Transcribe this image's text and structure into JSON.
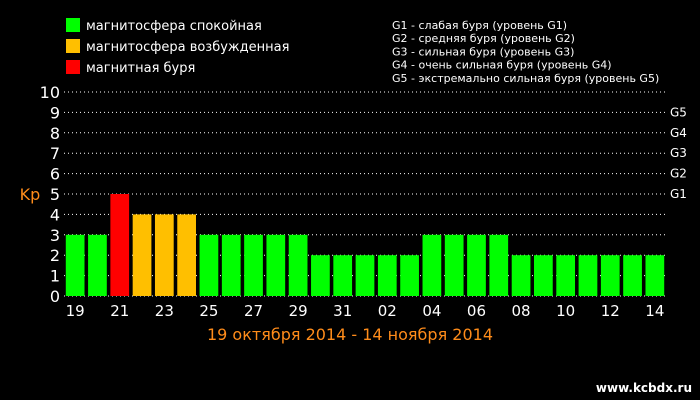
{
  "chart_data": {
    "type": "bar",
    "ylabel": "Kp",
    "ylim": [
      0,
      10
    ],
    "yticks": [
      "0",
      "1",
      "2",
      "3",
      "4",
      "5",
      "6",
      "7",
      "8",
      "9",
      "10"
    ],
    "grid": "horizontal-dotted",
    "x_range_label": "19 октября 2014 - 14 ноября 2014",
    "categories": [
      "19",
      "20",
      "21",
      "22",
      "23",
      "24",
      "25",
      "26",
      "27",
      "28",
      "29",
      "30",
      "31",
      "01",
      "02",
      "03",
      "04",
      "05",
      "06",
      "07",
      "08",
      "09",
      "10",
      "11",
      "12",
      "13",
      "14"
    ],
    "x_tick_labels": [
      "19",
      "21",
      "23",
      "25",
      "27",
      "29",
      "31",
      "02",
      "04",
      "06",
      "08",
      "10",
      "12",
      "14"
    ],
    "values": [
      3,
      3,
      5,
      4,
      4,
      4,
      3,
      3,
      3,
      3,
      3,
      2,
      2,
      2,
      2,
      2,
      3,
      3,
      3,
      3,
      2,
      2,
      2,
      2,
      2,
      2,
      2
    ],
    "levels": [
      "quiet",
      "quiet",
      "storm",
      "active",
      "active",
      "active",
      "quiet",
      "quiet",
      "quiet",
      "quiet",
      "quiet",
      "quiet",
      "quiet",
      "quiet",
      "quiet",
      "quiet",
      "quiet",
      "quiet",
      "quiet",
      "quiet",
      "quiet",
      "quiet",
      "quiet",
      "quiet",
      "quiet",
      "quiet",
      "quiet"
    ],
    "legend": [
      {
        "key": "quiet",
        "label": "магнитосфера спокойная",
        "color": "#00ff00"
      },
      {
        "key": "active",
        "label": "магнитосфера возбужденная",
        "color": "#ffbf00"
      },
      {
        "key": "storm",
        "label": "магнитная буря",
        "color": "#ff0000"
      }
    ],
    "storm_scale": [
      {
        "level": "G1",
        "kp": 5,
        "label": "G1 - слабая буря (уровень G1)"
      },
      {
        "level": "G2",
        "kp": 6,
        "label": "G2 - средняя буря (уровень G2)"
      },
      {
        "level": "G3",
        "kp": 7,
        "label": "G3 - сильная буря (уровень G3)"
      },
      {
        "level": "G4",
        "kp": 8,
        "label": "G4 - очень сильная буря (уровень G4)"
      },
      {
        "level": "G5",
        "kp": 9,
        "label": "G5 - экстремально сильная буря (уровень G5)"
      }
    ]
  },
  "colors": {
    "background": "#000000",
    "text": "#ffffff",
    "accent": "#ff8c1a",
    "grid": "#ffffff"
  },
  "watermark": "www.kcbdx.ru"
}
